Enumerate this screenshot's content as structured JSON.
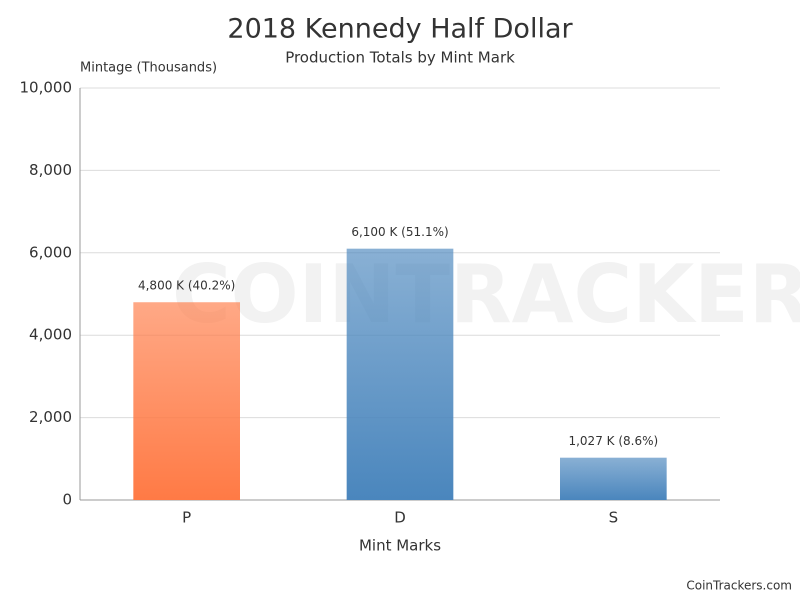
{
  "chart_data": {
    "type": "bar",
    "title": "2018 Kennedy Half Dollar",
    "subtitle": "Production Totals by Mint Mark",
    "y_label": "Mintage (Thousands)",
    "x_label": "Mint Marks",
    "watermark": "COINTRACKERS",
    "credit": "CoinTrackers.com",
    "categories": [
      "P",
      "D",
      "S"
    ],
    "values": [
      4800,
      6100,
      1027
    ],
    "value_labels": [
      "4,800 K (40.2%)",
      "6,100 K (51.1%)",
      "1,027 K (8.6%)"
    ],
    "colors": [
      "#ff7a45",
      "#4a86bd",
      "#4a86bd"
    ],
    "ylim": [
      0,
      10000
    ],
    "yticks": [
      0,
      {
        "value": 2000,
        "label": "2,000"
      },
      {
        "value": 4000,
        "label": "4,000"
      },
      {
        "value": 6000,
        "label": "6,000"
      },
      {
        "value": 8000,
        "label": "8,000"
      },
      {
        "value": 10000,
        "label": "10,000"
      }
    ],
    "grid": true
  }
}
